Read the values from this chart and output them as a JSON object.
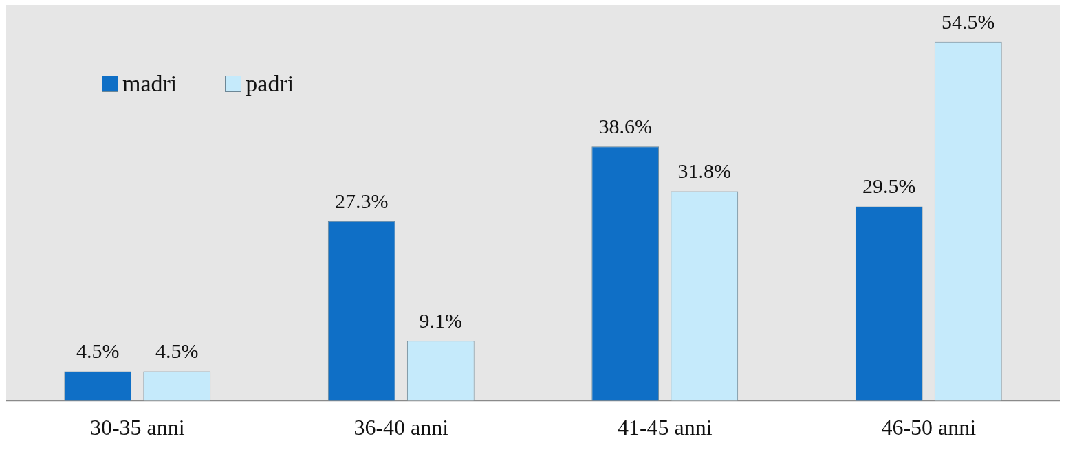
{
  "chart_data": {
    "type": "bar",
    "tick_labels": "x",
    "categories": [
      "30-35 anni",
      "36-40 anni",
      "41-45 anni",
      "46-50 anni"
    ],
    "series": [
      {
        "name": "madri",
        "color": "#0f6fc6",
        "values": [
          4.5,
          27.3,
          38.6,
          29.5
        ],
        "value_labels": [
          "4.5%",
          "27.3%",
          "38.6%",
          "29.5%"
        ]
      },
      {
        "name": "padri",
        "color": "#c5eafb",
        "values": [
          4.5,
          9.1,
          31.8,
          54.5
        ],
        "value_labels": [
          "4.5%",
          "9.1%",
          "31.8%",
          "54.5%"
        ]
      }
    ],
    "legend": "top left",
    "grid": false
  }
}
